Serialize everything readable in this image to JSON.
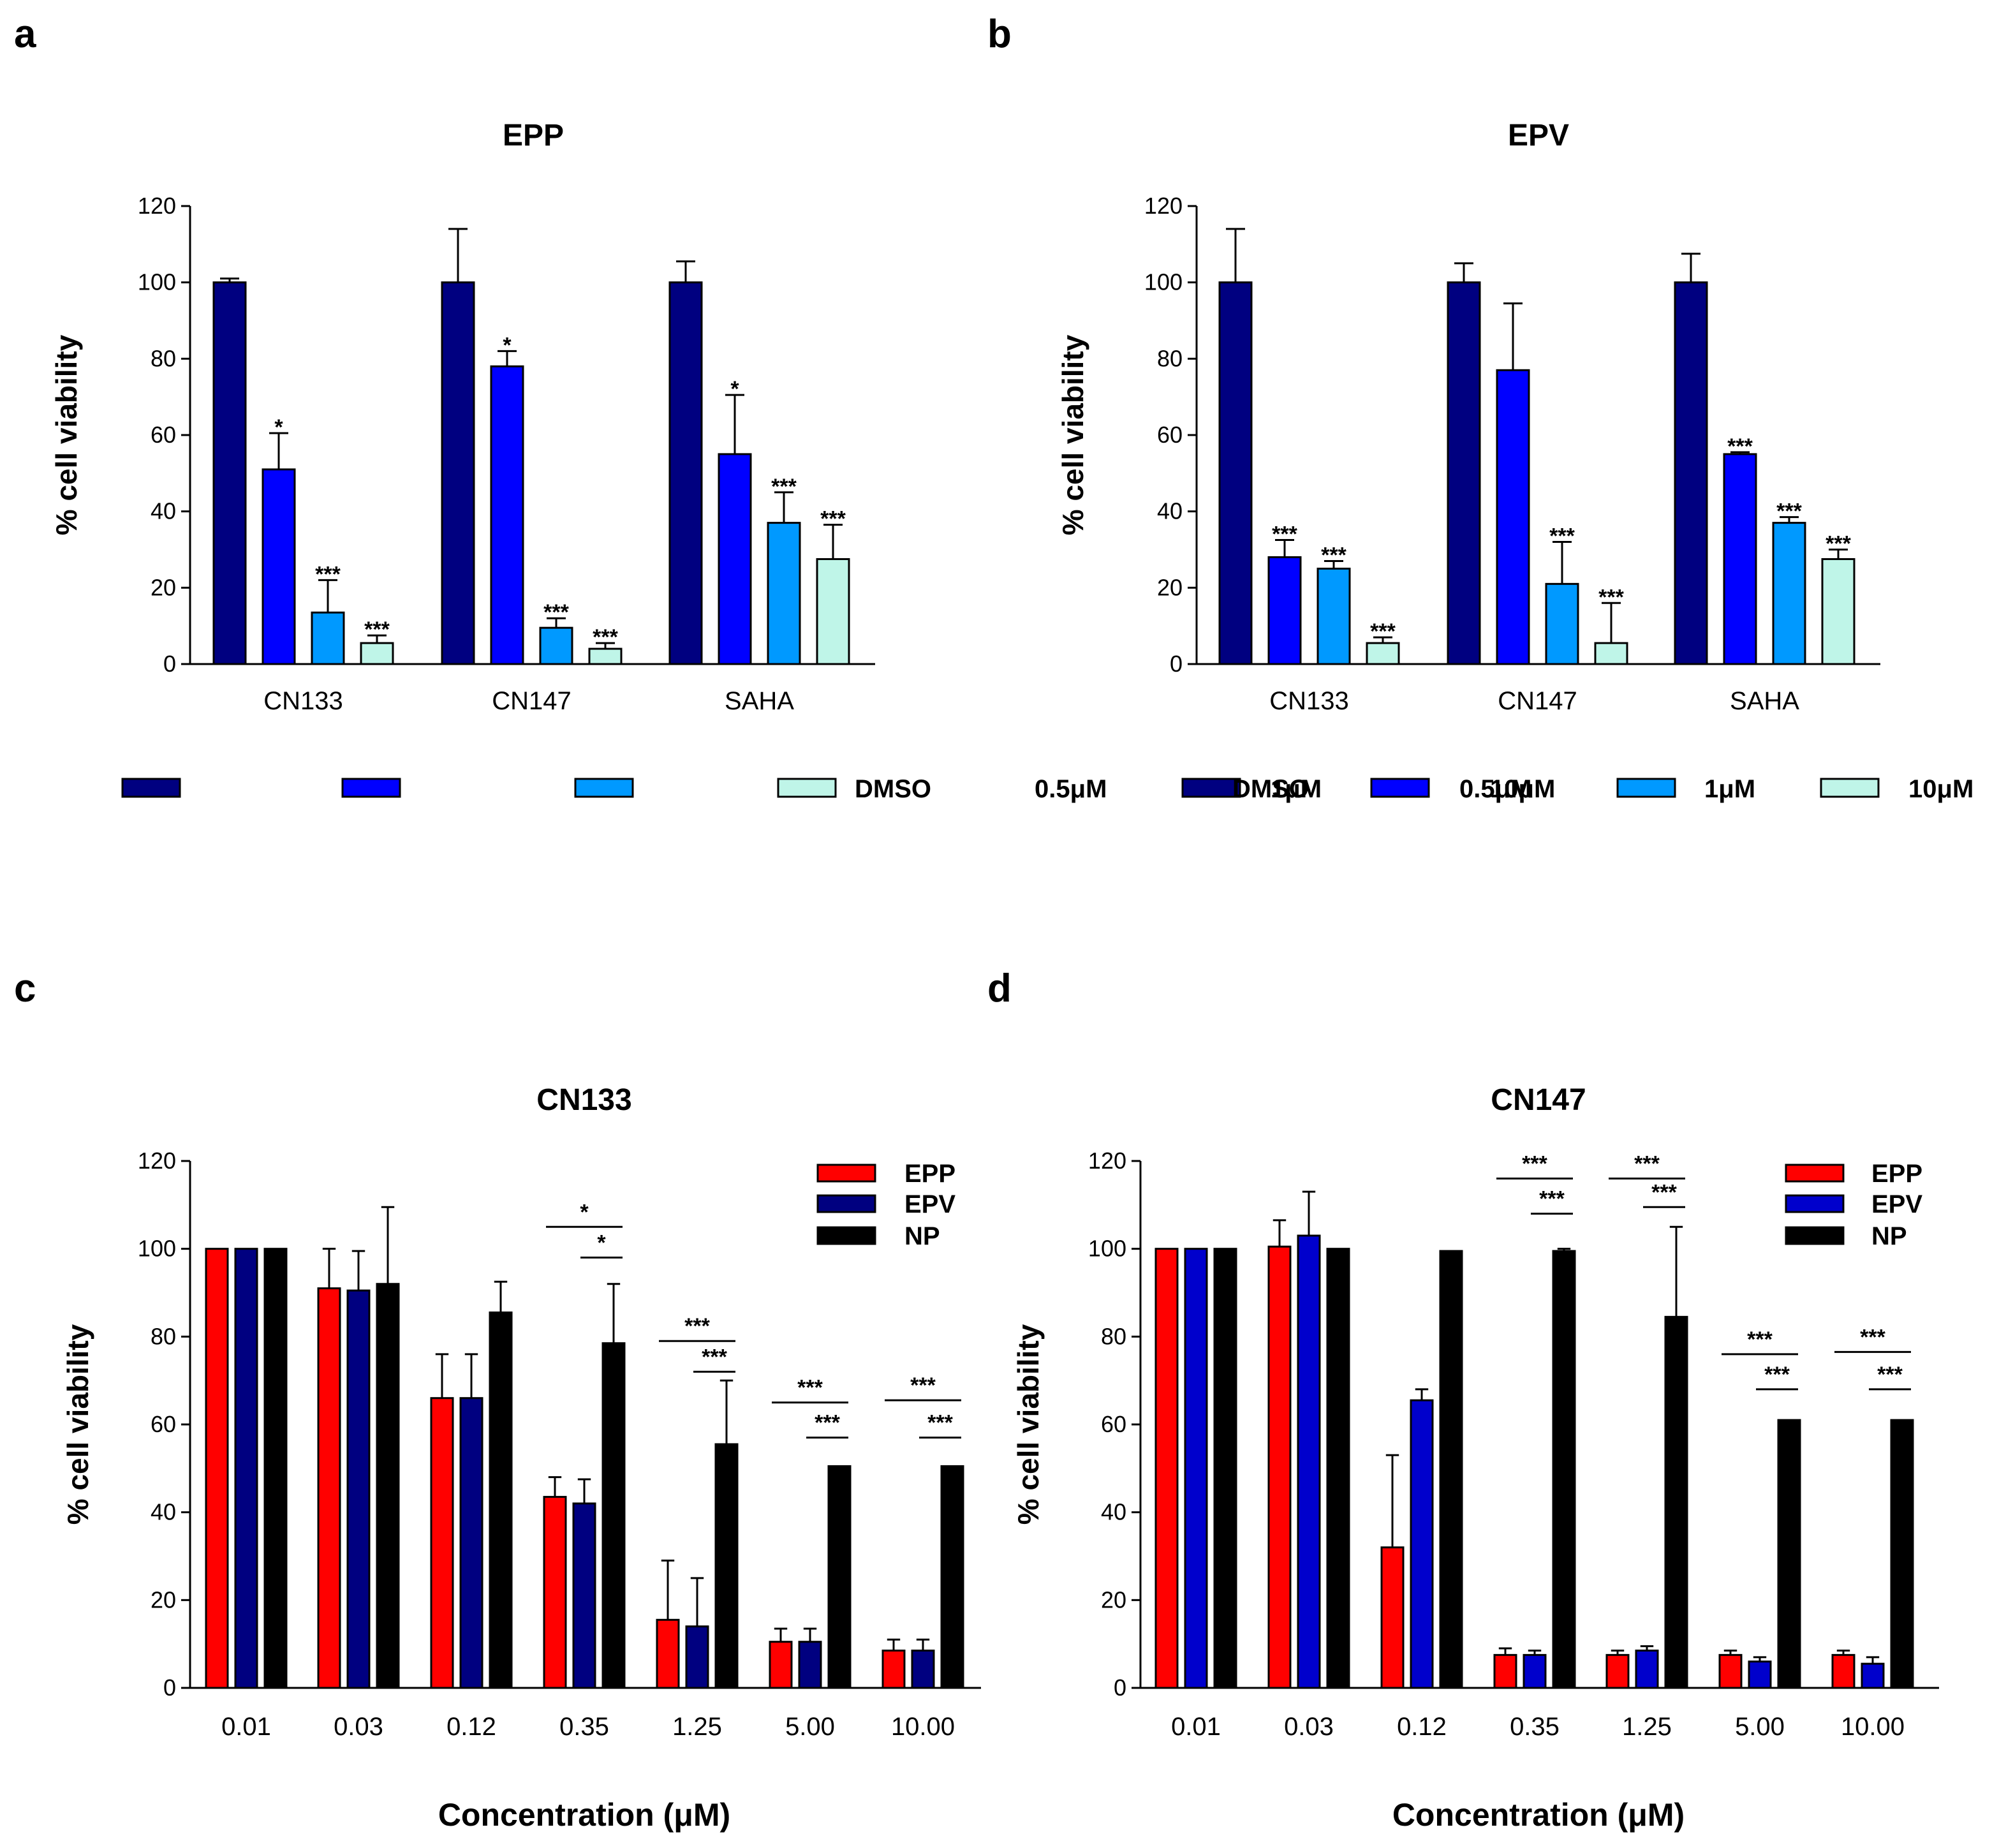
{
  "figure": {
    "panel_labels": [
      "a",
      "b",
      "c",
      "d"
    ]
  },
  "chart_data": [
    {
      "panel": "a",
      "type": "bar",
      "title": "EPP",
      "xlabel": "",
      "ylabel": "% cell viability",
      "ylim": [
        0,
        120
      ],
      "yticks": [
        0,
        20,
        40,
        60,
        80,
        100,
        120
      ],
      "grid": false,
      "legend_position": "bottom",
      "categories": [
        "CN133",
        "CN147",
        "SAHA"
      ],
      "series": [
        {
          "name": "DMSO",
          "color": "#000080",
          "values": [
            100,
            100,
            100
          ],
          "errors": [
            1,
            14,
            5.5
          ],
          "sig": [
            "",
            "",
            ""
          ]
        },
        {
          "name": "0.5μM",
          "color": "#0000ff",
          "values": [
            51,
            78,
            55
          ],
          "errors": [
            9.5,
            4,
            15.5
          ],
          "sig": [
            "*",
            "*",
            "*"
          ]
        },
        {
          "name": "1μM",
          "color": "#0099ff",
          "values": [
            13.5,
            9.5,
            37
          ],
          "errors": [
            8.5,
            2.5,
            8
          ],
          "sig": [
            "***",
            "***",
            "***"
          ]
        },
        {
          "name": "10μM",
          "color": "#bff5e8",
          "values": [
            5.5,
            4,
            27.5
          ],
          "errors": [
            2,
            1.5,
            9
          ],
          "sig": [
            "***",
            "***",
            "***"
          ]
        }
      ]
    },
    {
      "panel": "b",
      "type": "bar",
      "title": "EPV",
      "xlabel": "",
      "ylabel": "% cell viability",
      "ylim": [
        0,
        120
      ],
      "yticks": [
        0,
        20,
        40,
        60,
        80,
        100,
        120
      ],
      "grid": false,
      "legend_position": "bottom",
      "categories": [
        "CN133",
        "CN147",
        "SAHA"
      ],
      "series": [
        {
          "name": "DMSO",
          "color": "#000080",
          "values": [
            100,
            100,
            100
          ],
          "errors": [
            14,
            5,
            7.5
          ],
          "sig": [
            "",
            "",
            ""
          ]
        },
        {
          "name": "0.5μM",
          "color": "#0000ff",
          "values": [
            28,
            77,
            55
          ],
          "errors": [
            4.5,
            17.5,
            0.5
          ],
          "sig": [
            "***",
            "",
            "***"
          ]
        },
        {
          "name": "1μM",
          "color": "#0099ff",
          "values": [
            25,
            21,
            37
          ],
          "errors": [
            2,
            11,
            1.5
          ],
          "sig": [
            "***",
            "***",
            "***"
          ]
        },
        {
          "name": "10μM",
          "color": "#bff5e8",
          "values": [
            5.5,
            5.5,
            27.5
          ],
          "errors": [
            1.5,
            10.5,
            2.5
          ],
          "sig": [
            "***",
            "***",
            "***"
          ]
        }
      ]
    },
    {
      "panel": "c",
      "type": "bar",
      "title": "CN133",
      "xlabel": "Concentration (μM)",
      "ylabel": "% cell viability",
      "ylim": [
        0,
        120
      ],
      "yticks": [
        0,
        20,
        40,
        60,
        80,
        100,
        120
      ],
      "grid": false,
      "legend_position": "top-right",
      "categories": [
        "0.01",
        "0.03",
        "0.12",
        "0.35",
        "1.25",
        "5.00",
        "10.00"
      ],
      "series": [
        {
          "name": "EPP",
          "color": "#ff0000",
          "values": [
            100,
            91,
            66,
            43.5,
            15.5,
            10.5,
            8.5
          ],
          "errors": [
            0,
            9,
            10,
            4.5,
            13.5,
            3,
            2.5
          ]
        },
        {
          "name": "EPV",
          "color": "#000080",
          "values": [
            100,
            90.5,
            66,
            42,
            14,
            10.5,
            8.5
          ],
          "errors": [
            0,
            9,
            10,
            5.5,
            11,
            3,
            2.5
          ]
        },
        {
          "name": "NP",
          "color": "#000000",
          "values": [
            100,
            92,
            85.5,
            78.5,
            55.5,
            50.5,
            50.5
          ],
          "errors": [
            0,
            17.5,
            7,
            13.5,
            14.5,
            0,
            0
          ]
        }
      ],
      "comparisons": [
        {
          "category": "0.35",
          "upper": "*",
          "lower": "*",
          "upper_y": 105,
          "lower_y": 98
        },
        {
          "category": "1.25",
          "upper": "***",
          "lower": "***",
          "upper_y": 79,
          "lower_y": 72
        },
        {
          "category": "5.00",
          "upper": "***",
          "lower": "***",
          "upper_y": 65,
          "lower_y": 57
        },
        {
          "category": "10.00",
          "upper": "***",
          "lower": "***",
          "upper_y": 65.5,
          "lower_y": 57
        }
      ]
    },
    {
      "panel": "d",
      "type": "bar",
      "title": "CN147",
      "xlabel": "Concentration (μM)",
      "ylabel": "% cell viability",
      "ylim": [
        0,
        120
      ],
      "yticks": [
        0,
        20,
        40,
        60,
        80,
        100,
        120
      ],
      "grid": false,
      "legend_position": "top-right",
      "categories": [
        "0.01",
        "0.03",
        "0.12",
        "0.35",
        "1.25",
        "5.00",
        "10.00"
      ],
      "series": [
        {
          "name": "EPP",
          "color": "#ff0000",
          "values": [
            100,
            100.5,
            32,
            7.5,
            7.5,
            7.5,
            7.5
          ],
          "errors": [
            0,
            6,
            21,
            1.5,
            1,
            1,
            1
          ]
        },
        {
          "name": "EPV",
          "color": "#0000cc",
          "values": [
            100,
            103,
            65.5,
            7.5,
            8.5,
            6,
            5.5
          ],
          "errors": [
            0,
            10,
            2.5,
            1,
            1,
            1,
            1.5
          ]
        },
        {
          "name": "NP",
          "color": "#000000",
          "values": [
            100,
            100,
            99.5,
            99.5,
            84.5,
            61,
            61
          ],
          "errors": [
            0,
            0,
            0,
            0.5,
            20.5,
            0,
            0
          ]
        }
      ],
      "comparisons": [
        {
          "category": "0.35",
          "upper": "***",
          "lower": "***",
          "upper_y": 116,
          "lower_y": 108
        },
        {
          "category": "1.25",
          "upper": "***",
          "lower": "***",
          "upper_y": 116,
          "lower_y": 109.5
        },
        {
          "category": "5.00",
          "upper": "***",
          "lower": "***",
          "upper_y": 76,
          "lower_y": 68
        },
        {
          "category": "10.00",
          "upper": "***",
          "lower": "***",
          "upper_y": 76.5,
          "lower_y": 68
        }
      ]
    }
  ]
}
